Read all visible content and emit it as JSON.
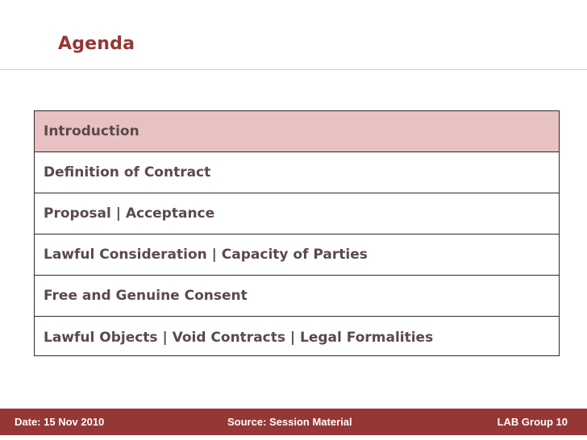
{
  "slide": {
    "title": "Agenda",
    "accent_color": "#953735",
    "highlight_color": "#e8c2c2"
  },
  "agenda": {
    "items": [
      {
        "label": "Introduction",
        "active": true
      },
      {
        "label": "Definition of Contract",
        "active": false
      },
      {
        "label": "Proposal | Acceptance",
        "active": false
      },
      {
        "label": "Lawful Consideration | Capacity of Parties",
        "active": false
      },
      {
        "label": "Free and Genuine Consent",
        "active": false
      },
      {
        "label": "Lawful Objects | Void Contracts | Legal Formalities",
        "active": false
      }
    ]
  },
  "footer": {
    "date": "Date: 15 Nov 2010",
    "source": "Source: Session Material",
    "group": "LAB Group 10"
  }
}
